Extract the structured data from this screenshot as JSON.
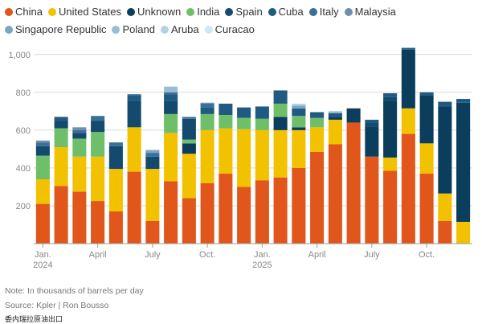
{
  "chart_data": {
    "type": "bar",
    "stacked": true,
    "ylim": [
      0,
      1050
    ],
    "yticks": [
      200,
      400,
      600,
      800,
      1000
    ],
    "ytick_labels": [
      "200",
      "400",
      "600",
      "800",
      "1,000"
    ],
    "grid": true,
    "legend_position": "top",
    "x_tick_labels": [
      {
        "index": 0,
        "label": "Jan.",
        "sub": "2024"
      },
      {
        "index": 3,
        "label": "April",
        "sub": ""
      },
      {
        "index": 6,
        "label": "July",
        "sub": ""
      },
      {
        "index": 9,
        "label": "Oct.",
        "sub": ""
      },
      {
        "index": 12,
        "label": "Jan.",
        "sub": "2025"
      },
      {
        "index": 15,
        "label": "April",
        "sub": ""
      },
      {
        "index": 18,
        "label": "July",
        "sub": ""
      },
      {
        "index": 21,
        "label": "Oct.",
        "sub": ""
      }
    ],
    "series": [
      {
        "name": "China",
        "color": "#e0561b",
        "values": [
          210,
          305,
          275,
          225,
          170,
          380,
          120,
          330,
          240,
          320,
          370,
          300,
          335,
          350,
          400,
          485,
          525,
          640,
          460,
          385,
          580,
          370,
          120,
          0
        ]
      },
      {
        "name": "United States",
        "color": "#f2c200",
        "values": [
          130,
          205,
          185,
          235,
          225,
          235,
          275,
          255,
          235,
          280,
          240,
          305,
          265,
          250,
          200,
          130,
          130,
          0,
          0,
          70,
          135,
          160,
          145,
          115
        ]
      },
      {
        "name": "Unknown",
        "color": "#0b3d5c",
        "values": [
          0,
          0,
          0,
          0,
          0,
          0,
          0,
          0,
          55,
          0,
          0,
          0,
          0,
          70,
          15,
          0,
          15,
          75,
          160,
          300,
          310,
          255,
          460,
          630
        ]
      },
      {
        "name": "India",
        "color": "#6fbf6a",
        "values": [
          125,
          100,
          95,
          130,
          0,
          0,
          0,
          100,
          20,
          85,
          70,
          60,
          60,
          70,
          60,
          50,
          0,
          0,
          0,
          0,
          0,
          0,
          0,
          0
        ]
      },
      {
        "name": "Spain",
        "color": "#134a6e",
        "values": [
          50,
          40,
          30,
          60,
          120,
          140,
          65,
          70,
          110,
          0,
          0,
          0,
          0,
          0,
          0,
          0,
          0,
          0,
          20,
          20,
          0,
          0,
          0,
          0
        ]
      },
      {
        "name": "Cuba",
        "color": "#1f5a82",
        "values": [
          0,
          20,
          0,
          0,
          0,
          30,
          0,
          35,
          0,
          35,
          60,
          55,
          65,
          70,
          40,
          30,
          20,
          0,
          15,
          20,
          10,
          15,
          25,
          20
        ]
      },
      {
        "name": "Italy",
        "color": "#3b6f9a",
        "values": [
          20,
          0,
          15,
          25,
          20,
          5,
          20,
          10,
          10,
          20,
          0,
          0,
          0,
          0,
          0,
          0,
          0,
          0,
          0,
          0,
          0,
          0,
          0,
          0
        ]
      },
      {
        "name": "Malaysia",
        "color": "#6c8fb0",
        "values": [
          10,
          0,
          15,
          0,
          0,
          0,
          0,
          0,
          0,
          5,
          0,
          0,
          0,
          0,
          0,
          0,
          0,
          0,
          0,
          0,
          0,
          0,
          0,
          0
        ]
      },
      {
        "name": "Singapore Republic",
        "color": "#7aa6c4",
        "values": [
          0,
          0,
          0,
          0,
          0,
          0,
          15,
          0,
          0,
          0,
          0,
          0,
          0,
          0,
          15,
          0,
          0,
          0,
          0,
          0,
          0,
          0,
          0,
          0
        ]
      },
      {
        "name": "Poland",
        "color": "#97bcd6",
        "values": [
          0,
          0,
          0,
          0,
          0,
          0,
          0,
          30,
          0,
          0,
          0,
          0,
          0,
          0,
          0,
          0,
          10,
          0,
          0,
          0,
          0,
          0,
          0,
          0
        ]
      },
      {
        "name": "Aruba",
        "color": "#b2d2e6",
        "values": [
          0,
          0,
          0,
          0,
          0,
          0,
          0,
          0,
          0,
          0,
          0,
          0,
          0,
          0,
          10,
          0,
          0,
          0,
          0,
          0,
          0,
          0,
          0,
          0
        ]
      },
      {
        "name": "Curacao",
        "color": "#cfe6f4",
        "values": [
          0,
          0,
          0,
          0,
          0,
          0,
          0,
          0,
          0,
          0,
          0,
          0,
          0,
          0,
          0,
          0,
          0,
          0,
          0,
          0,
          0,
          0,
          0,
          0
        ]
      }
    ]
  },
  "notes": {
    "note": "Note: In thousands of barrels per day",
    "source": "Source: Kpler | Ron Bousso",
    "source_cn": "委内瑞拉原油出口"
  }
}
